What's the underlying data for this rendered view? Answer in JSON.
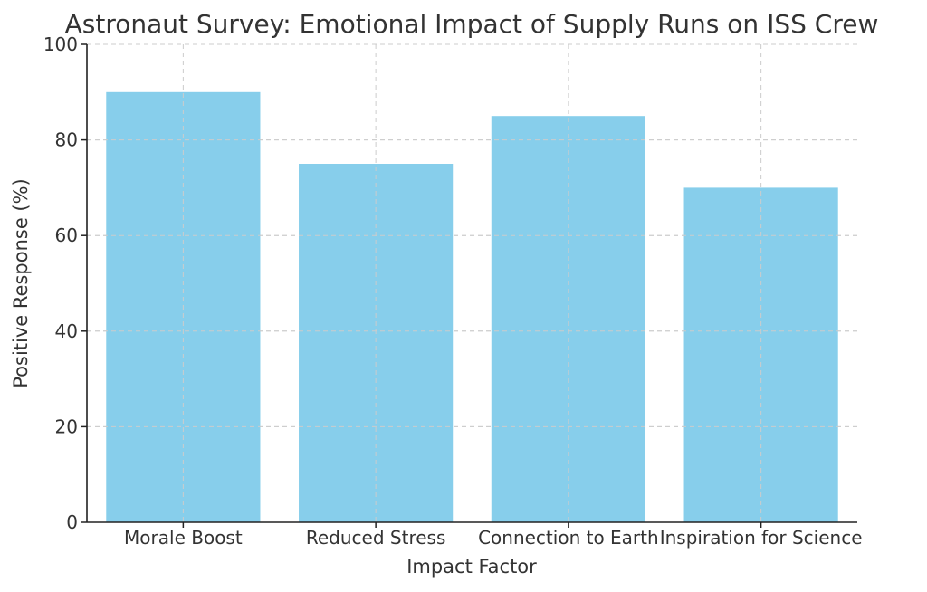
{
  "chart_data": {
    "type": "bar",
    "title": "Astronaut Survey: Emotional Impact of Supply Runs on ISS Crew",
    "xlabel": "Impact Factor",
    "ylabel": "Positive Response (%)",
    "categories": [
      "Morale Boost",
      "Reduced Stress",
      "Connection to Earth",
      "Inspiration for Science"
    ],
    "values": [
      90,
      75,
      85,
      70
    ],
    "ylim": [
      0,
      100
    ],
    "yticks": [
      0,
      20,
      40,
      60,
      80,
      100
    ],
    "grid": true,
    "colors": {
      "bar": "#87CEEB",
      "axis": "#222222",
      "grid": "#cccccc",
      "text": "#333333"
    }
  }
}
